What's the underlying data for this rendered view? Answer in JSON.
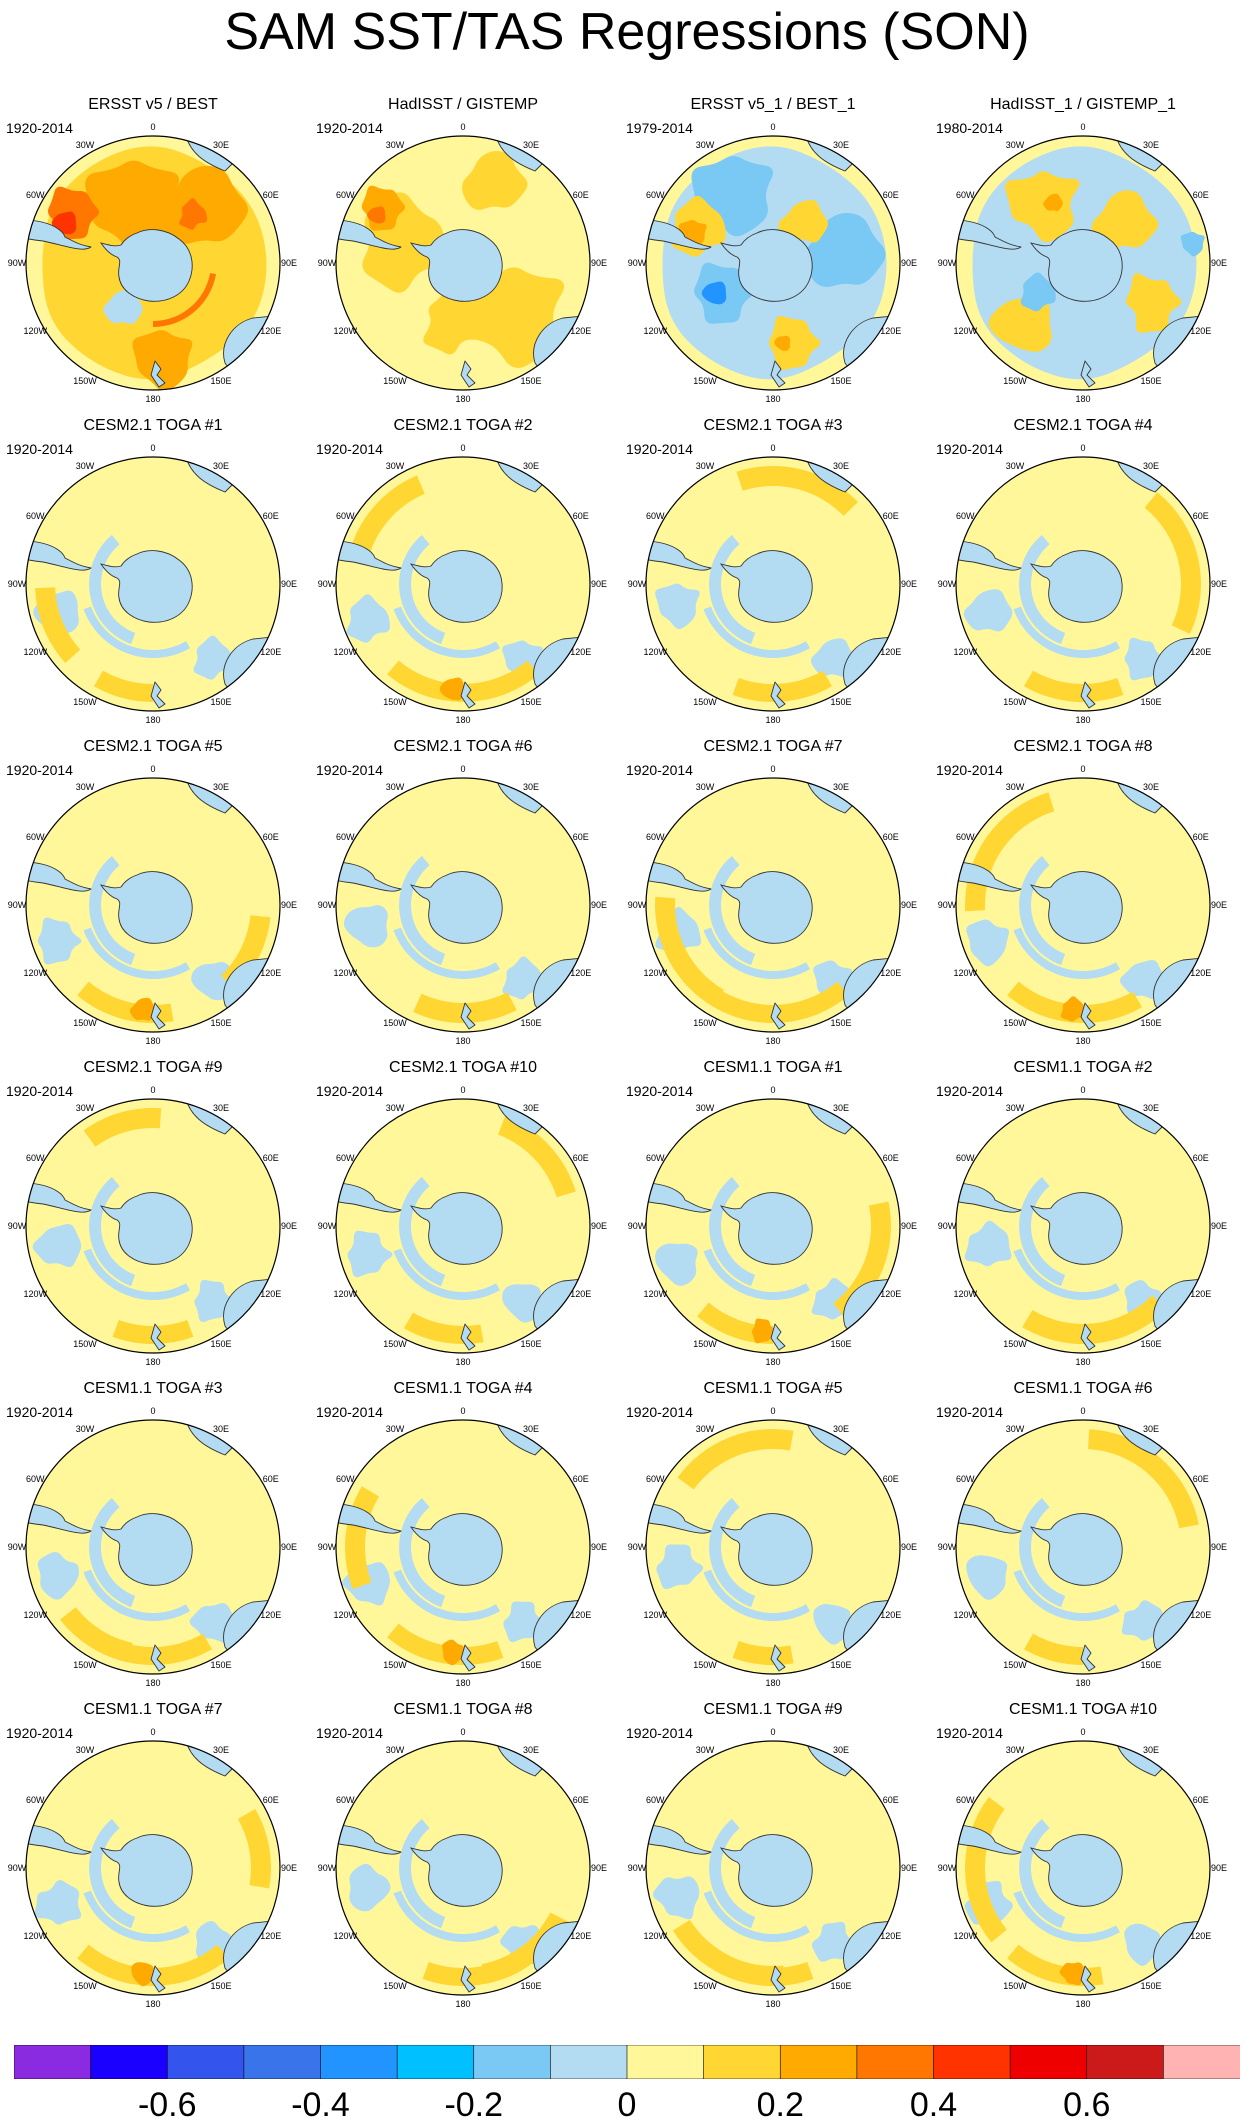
{
  "title": "SAM SST/TAS Regressions (SON)",
  "longitude_labels": [
    "0",
    "30E",
    "60E",
    "90E",
    "120E",
    "150E",
    "180",
    "150W",
    "120W",
    "90W",
    "60W",
    "30W"
  ],
  "panels": [
    {
      "title": "ERSST v5 / BEST",
      "years": "1920-2014",
      "pattern": "obs1"
    },
    {
      "title": "HadISST / GISTEMP",
      "years": "1920-2014",
      "pattern": "obs2"
    },
    {
      "title": "ERSST v5_1 / BEST_1",
      "years": "1979-2014",
      "pattern": "obs3"
    },
    {
      "title": "HadISST_1 / GISTEMP_1",
      "years": "1980-2014",
      "pattern": "obs4"
    },
    {
      "title": "CESM2.1 TOGA #1",
      "years": "1920-2014",
      "pattern": "model"
    },
    {
      "title": "CESM2.1 TOGA #2",
      "years": "1920-2014",
      "pattern": "model"
    },
    {
      "title": "CESM2.1 TOGA #3",
      "years": "1920-2014",
      "pattern": "model"
    },
    {
      "title": "CESM2.1 TOGA #4",
      "years": "1920-2014",
      "pattern": "model"
    },
    {
      "title": "CESM2.1 TOGA #5",
      "years": "1920-2014",
      "pattern": "model"
    },
    {
      "title": "CESM2.1 TOGA #6",
      "years": "1920-2014",
      "pattern": "model"
    },
    {
      "title": "CESM2.1 TOGA #7",
      "years": "1920-2014",
      "pattern": "model"
    },
    {
      "title": "CESM2.1 TOGA #8",
      "years": "1920-2014",
      "pattern": "model"
    },
    {
      "title": "CESM2.1 TOGA #9",
      "years": "1920-2014",
      "pattern": "model"
    },
    {
      "title": "CESM2.1 TOGA #10",
      "years": "1920-2014",
      "pattern": "model"
    },
    {
      "title": "CESM1.1 TOGA #1",
      "years": "1920-2014",
      "pattern": "model"
    },
    {
      "title": "CESM1.1 TOGA #2",
      "years": "1920-2014",
      "pattern": "model"
    },
    {
      "title": "CESM1.1 TOGA #3",
      "years": "1920-2014",
      "pattern": "model"
    },
    {
      "title": "CESM1.1 TOGA #4",
      "years": "1920-2014",
      "pattern": "model"
    },
    {
      "title": "CESM1.1 TOGA #5",
      "years": "1920-2014",
      "pattern": "model"
    },
    {
      "title": "CESM1.1 TOGA #6",
      "years": "1920-2014",
      "pattern": "model"
    },
    {
      "title": "CESM1.1 TOGA #7",
      "years": "1920-2014",
      "pattern": "model"
    },
    {
      "title": "CESM1.1 TOGA #8",
      "years": "1920-2014",
      "pattern": "model"
    },
    {
      "title": "CESM1.1 TOGA #9",
      "years": "1920-2014",
      "pattern": "model"
    },
    {
      "title": "CESM1.1 TOGA #10",
      "years": "1920-2014",
      "pattern": "model"
    }
  ],
  "colorbar": {
    "colors": [
      "#8a2be2",
      "#1a00ff",
      "#3355ee",
      "#3a74ea",
      "#2194ff",
      "#00c0ff",
      "#7ac8f4",
      "#b3dcf2",
      "#fff79a",
      "#ffd632",
      "#ffaa00",
      "#ff7700",
      "#ff3300",
      "#ee0000",
      "#cc1a1a",
      "#ffb3b3"
    ],
    "labels": [
      "-0.6",
      "-0.4",
      "-0.2",
      "0",
      "0.2",
      "0.4",
      "0.6"
    ]
  },
  "colors": {
    "land": "#b3dcf2",
    "ocean_base": "#fff79a",
    "light_blue": "#b3dcf2",
    "mid_blue": "#7ac8f4",
    "blue": "#2194ff",
    "light_orange": "#ffd632",
    "orange": "#ffaa00",
    "dark_orange": "#ff7700",
    "red": "#ff3300"
  }
}
